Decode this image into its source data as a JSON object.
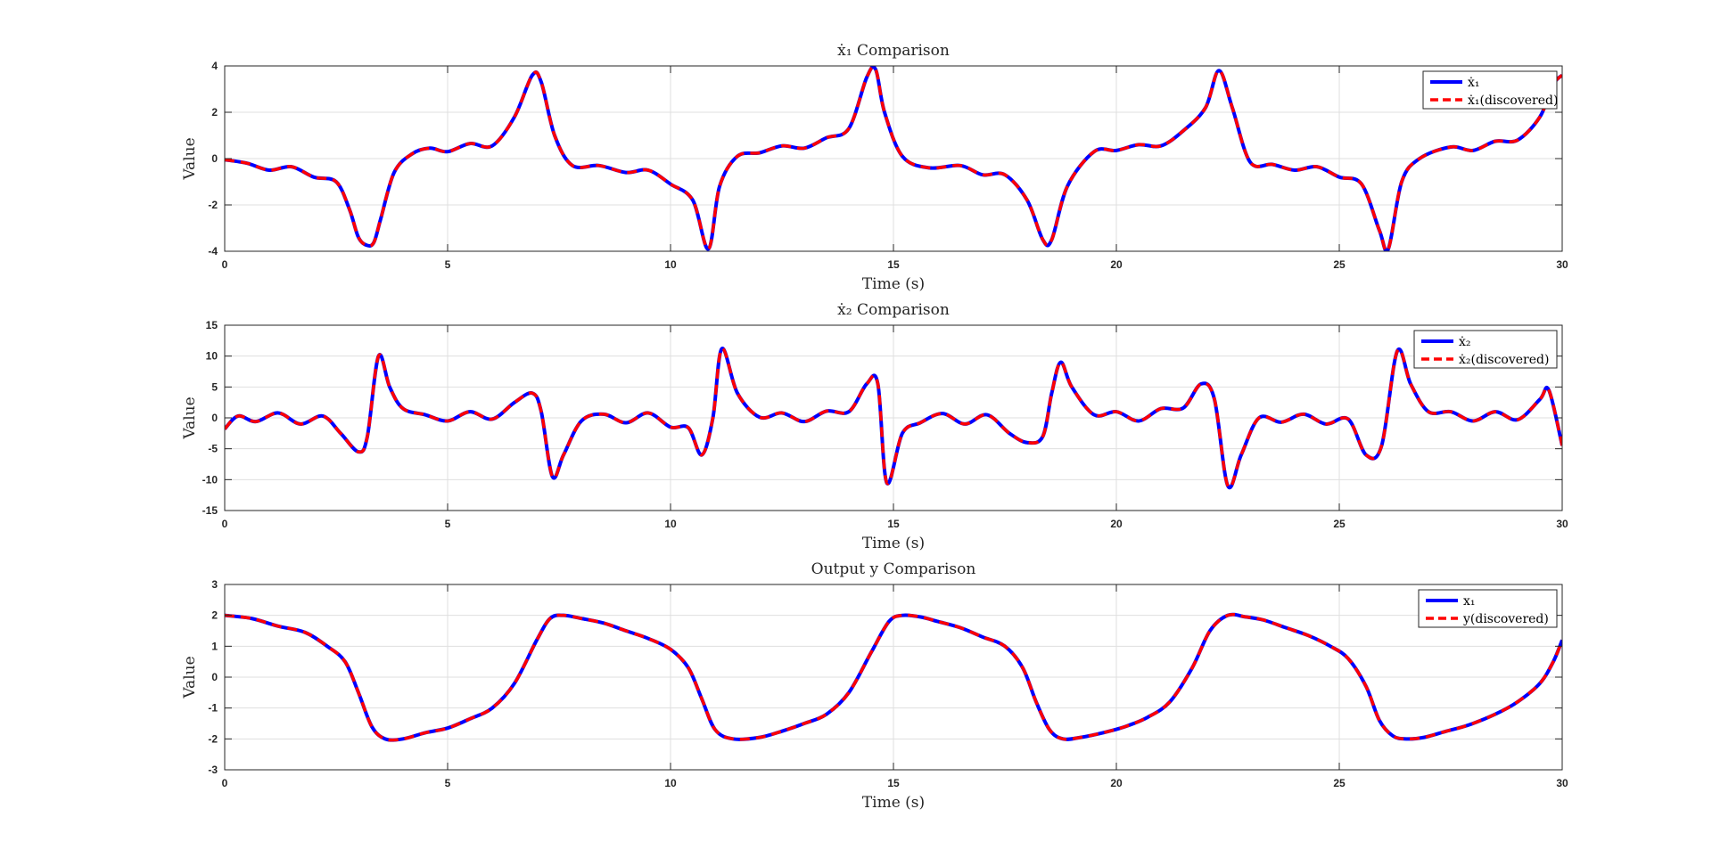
{
  "chart_data": [
    {
      "type": "line",
      "title": "ẋ₁ Comparison",
      "xlabel": "Time (s)",
      "ylabel": "Value",
      "xlim": [
        0,
        30
      ],
      "ylim": [
        -4,
        4
      ],
      "xticks": [
        0,
        5,
        10,
        15,
        20,
        25,
        30
      ],
      "yticks": [
        -4,
        -2,
        0,
        2,
        4
      ],
      "grid": true,
      "legend_position": "top-right",
      "series": [
        {
          "name": "ẋ₁",
          "color": "#0000ff",
          "style": "solid",
          "x": [
            0,
            0.5,
            1.0,
            1.5,
            2.0,
            2.5,
            2.8,
            3.0,
            3.2,
            3.35,
            3.5,
            3.8,
            4.2,
            4.6,
            5.0,
            5.5,
            6.0,
            6.5,
            6.9,
            7.1,
            7.4,
            7.8,
            8.4,
            9.0,
            9.5,
            10.0,
            10.5,
            10.85,
            11.1,
            11.5,
            12.0,
            12.5,
            13.0,
            13.5,
            14.0,
            14.4,
            14.6,
            14.8,
            15.2,
            15.8,
            16.5,
            17.0,
            17.5,
            18.0,
            18.35,
            18.55,
            18.9,
            19.5,
            20.0,
            20.5,
            21.0,
            21.5,
            22.0,
            22.3,
            22.6,
            23.0,
            23.5,
            24.0,
            24.5,
            25.0,
            25.5,
            25.9,
            26.1,
            26.4,
            26.8,
            27.5,
            28.0,
            28.5,
            29.0,
            29.5,
            29.8,
            30.0
          ],
          "y": [
            -0.05,
            -0.2,
            -0.5,
            -0.35,
            -0.8,
            -1.0,
            -2.2,
            -3.4,
            -3.75,
            -3.6,
            -2.6,
            -0.6,
            0.2,
            0.45,
            0.3,
            0.65,
            0.55,
            1.8,
            3.6,
            3.3,
            1.0,
            -0.3,
            -0.3,
            -0.6,
            -0.5,
            -1.1,
            -1.8,
            -3.9,
            -1.2,
            0.1,
            0.25,
            0.55,
            0.45,
            0.9,
            1.3,
            3.5,
            3.85,
            2.0,
            0.1,
            -0.4,
            -0.3,
            -0.7,
            -0.7,
            -1.8,
            -3.5,
            -3.5,
            -1.2,
            0.3,
            0.35,
            0.6,
            0.55,
            1.2,
            2.2,
            3.8,
            2.2,
            -0.15,
            -0.25,
            -0.5,
            -0.35,
            -0.8,
            -1.1,
            -3.1,
            -3.9,
            -1.0,
            0.0,
            0.5,
            0.35,
            0.75,
            0.8,
            1.8,
            3.2,
            3.6
          ]
        },
        {
          "name": "ẋ₁(discovered)",
          "color": "#ff0000",
          "style": "dashed",
          "x": [
            0,
            0.5,
            1.0,
            1.5,
            2.0,
            2.5,
            2.8,
            3.0,
            3.2,
            3.35,
            3.5,
            3.8,
            4.2,
            4.6,
            5.0,
            5.5,
            6.0,
            6.5,
            6.9,
            7.1,
            7.4,
            7.8,
            8.4,
            9.0,
            9.5,
            10.0,
            10.5,
            10.85,
            11.1,
            11.5,
            12.0,
            12.5,
            13.0,
            13.5,
            14.0,
            14.4,
            14.6,
            14.8,
            15.2,
            15.8,
            16.5,
            17.0,
            17.5,
            18.0,
            18.35,
            18.55,
            18.9,
            19.5,
            20.0,
            20.5,
            21.0,
            21.5,
            22.0,
            22.3,
            22.6,
            23.0,
            23.5,
            24.0,
            24.5,
            25.0,
            25.5,
            25.9,
            26.1,
            26.4,
            26.8,
            27.5,
            28.0,
            28.5,
            29.0,
            29.5,
            29.8,
            30.0
          ],
          "y": [
            -0.05,
            -0.2,
            -0.5,
            -0.35,
            -0.8,
            -1.0,
            -2.2,
            -3.4,
            -3.75,
            -3.6,
            -2.6,
            -0.6,
            0.2,
            0.45,
            0.3,
            0.65,
            0.55,
            1.8,
            3.6,
            3.3,
            1.0,
            -0.3,
            -0.3,
            -0.6,
            -0.5,
            -1.1,
            -1.8,
            -3.9,
            -1.2,
            0.1,
            0.25,
            0.55,
            0.45,
            0.9,
            1.3,
            3.5,
            3.85,
            2.0,
            0.1,
            -0.4,
            -0.3,
            -0.7,
            -0.7,
            -1.8,
            -3.5,
            -3.5,
            -1.2,
            0.3,
            0.35,
            0.6,
            0.55,
            1.2,
            2.2,
            3.8,
            2.2,
            -0.15,
            -0.25,
            -0.5,
            -0.35,
            -0.8,
            -1.1,
            -3.1,
            -3.9,
            -1.0,
            0.0,
            0.5,
            0.35,
            0.75,
            0.8,
            1.8,
            3.2,
            3.6
          ]
        }
      ]
    },
    {
      "type": "line",
      "title": "ẋ₂ Comparison",
      "xlabel": "Time (s)",
      "ylabel": "Value",
      "xlim": [
        0,
        30
      ],
      "ylim": [
        -15,
        15
      ],
      "xticks": [
        0,
        5,
        10,
        15,
        20,
        25,
        30
      ],
      "yticks": [
        -15,
        -10,
        -5,
        0,
        5,
        10,
        15
      ],
      "grid": true,
      "legend_position": "top-right",
      "series": [
        {
          "name": "ẋ₂",
          "color": "#0000ff",
          "style": "solid",
          "x": [
            0,
            0.3,
            0.7,
            1.2,
            1.7,
            2.2,
            2.6,
            3.0,
            3.2,
            3.45,
            3.7,
            4.0,
            4.5,
            5.0,
            5.5,
            6.0,
            6.5,
            6.9,
            7.1,
            7.35,
            7.6,
            8.0,
            8.5,
            9.0,
            9.5,
            10.0,
            10.4,
            10.7,
            10.95,
            11.15,
            11.5,
            12.0,
            12.5,
            13.0,
            13.5,
            14.0,
            14.4,
            14.65,
            14.85,
            15.2,
            15.6,
            16.1,
            16.6,
            17.1,
            17.6,
            18.0,
            18.35,
            18.55,
            18.75,
            19.0,
            19.5,
            20.0,
            20.5,
            21.0,
            21.5,
            21.9,
            22.2,
            22.5,
            22.8,
            23.2,
            23.7,
            24.2,
            24.7,
            25.2,
            25.6,
            25.95,
            26.3,
            26.6,
            27.0,
            27.5,
            28.0,
            28.5,
            29.0,
            29.5,
            29.7,
            30.0
          ],
          "y": [
            -1.8,
            0.3,
            -0.6,
            0.8,
            -1.0,
            0.3,
            -2.5,
            -5.5,
            -3.0,
            10.0,
            5.0,
            1.5,
            0.5,
            -0.5,
            1.0,
            -0.2,
            2.5,
            4.0,
            1.0,
            -9.5,
            -6.0,
            -0.5,
            0.6,
            -0.8,
            0.8,
            -1.5,
            -1.6,
            -6.0,
            0.0,
            11.2,
            4.0,
            0.1,
            0.8,
            -0.6,
            1.1,
            1.0,
            5.5,
            5.5,
            -10.5,
            -2.5,
            -0.8,
            0.7,
            -1.0,
            0.5,
            -2.5,
            -4.0,
            -3.0,
            4.0,
            9.0,
            5.0,
            0.5,
            1.0,
            -0.5,
            1.5,
            1.6,
            5.5,
            3.0,
            -11.0,
            -6.0,
            0.0,
            -0.7,
            0.6,
            -1.0,
            -0.2,
            -6.0,
            -4.5,
            10.8,
            5.5,
            1.0,
            1.0,
            -0.5,
            1.0,
            -0.3,
            3.0,
            4.5,
            -4.5
          ]
        },
        {
          "name": "ẋ₂(discovered)",
          "color": "#ff0000",
          "style": "dashed",
          "x": [
            0,
            0.3,
            0.7,
            1.2,
            1.7,
            2.2,
            2.6,
            3.0,
            3.2,
            3.45,
            3.7,
            4.0,
            4.5,
            5.0,
            5.5,
            6.0,
            6.5,
            6.9,
            7.1,
            7.35,
            7.6,
            8.0,
            8.5,
            9.0,
            9.5,
            10.0,
            10.4,
            10.7,
            10.95,
            11.15,
            11.5,
            12.0,
            12.5,
            13.0,
            13.5,
            14.0,
            14.4,
            14.65,
            14.85,
            15.2,
            15.6,
            16.1,
            16.6,
            17.1,
            17.6,
            18.0,
            18.35,
            18.55,
            18.75,
            19.0,
            19.5,
            20.0,
            20.5,
            21.0,
            21.5,
            21.9,
            22.2,
            22.5,
            22.8,
            23.2,
            23.7,
            24.2,
            24.7,
            25.2,
            25.6,
            25.95,
            26.3,
            26.6,
            27.0,
            27.5,
            28.0,
            28.5,
            29.0,
            29.5,
            29.7,
            30.0
          ],
          "y": [
            -1.8,
            0.3,
            -0.6,
            0.8,
            -1.0,
            0.3,
            -2.5,
            -5.5,
            -3.0,
            10.0,
            5.0,
            1.5,
            0.5,
            -0.5,
            1.0,
            -0.2,
            2.5,
            4.0,
            1.0,
            -9.5,
            -6.0,
            -0.5,
            0.6,
            -0.8,
            0.8,
            -1.5,
            -1.6,
            -6.0,
            0.0,
            11.2,
            4.0,
            0.1,
            0.8,
            -0.6,
            1.1,
            1.0,
            5.5,
            5.5,
            -10.5,
            -2.5,
            -0.8,
            0.7,
            -1.0,
            0.5,
            -2.5,
            -4.0,
            -3.0,
            4.0,
            9.0,
            5.0,
            0.5,
            1.0,
            -0.5,
            1.5,
            1.6,
            5.5,
            3.0,
            -11.0,
            -6.0,
            0.0,
            -0.7,
            0.6,
            -1.0,
            -0.2,
            -6.0,
            -4.5,
            10.8,
            5.5,
            1.0,
            1.0,
            -0.5,
            1.0,
            -0.3,
            3.0,
            4.5,
            -4.5
          ]
        }
      ]
    },
    {
      "type": "line",
      "title": "Output y Comparison",
      "xlabel": "Time (s)",
      "ylabel": "Value",
      "xlim": [
        0,
        30
      ],
      "ylim": [
        -3,
        3
      ],
      "xticks": [
        0,
        5,
        10,
        15,
        20,
        25,
        30
      ],
      "yticks": [
        -3,
        -2,
        -1,
        0,
        1,
        2,
        3
      ],
      "grid": true,
      "legend_position": "top-right",
      "series": [
        {
          "name": "x₁",
          "color": "#0000ff",
          "style": "solid",
          "x": [
            0,
            0.6,
            1.2,
            1.8,
            2.3,
            2.7,
            3.0,
            3.3,
            3.6,
            4.0,
            4.5,
            5.0,
            5.5,
            6.0,
            6.5,
            7.0,
            7.3,
            7.6,
            8.0,
            8.5,
            9.0,
            9.5,
            10.0,
            10.4,
            10.7,
            11.0,
            11.4,
            12.0,
            12.5,
            13.0,
            13.5,
            14.0,
            14.5,
            14.9,
            15.2,
            15.6,
            16.0,
            16.5,
            17.0,
            17.5,
            17.9,
            18.2,
            18.5,
            18.8,
            19.2,
            19.7,
            20.2,
            20.7,
            21.2,
            21.7,
            22.1,
            22.5,
            22.9,
            23.3,
            23.8,
            24.3,
            24.8,
            25.2,
            25.6,
            25.9,
            26.2,
            26.5,
            26.9,
            27.4,
            27.9,
            28.5,
            29.0,
            29.5,
            29.8,
            30.0
          ],
          "y": [
            2.0,
            1.9,
            1.65,
            1.45,
            1.0,
            0.5,
            -0.5,
            -1.6,
            -2.0,
            -2.0,
            -1.8,
            -1.65,
            -1.35,
            -1.0,
            -0.2,
            1.2,
            1.9,
            2.0,
            1.9,
            1.75,
            1.5,
            1.25,
            0.9,
            0.3,
            -0.7,
            -1.7,
            -2.0,
            -1.95,
            -1.75,
            -1.5,
            -1.2,
            -0.5,
            0.8,
            1.8,
            2.0,
            1.95,
            1.8,
            1.6,
            1.3,
            1.0,
            0.3,
            -0.8,
            -1.7,
            -2.0,
            -1.95,
            -1.8,
            -1.6,
            -1.3,
            -0.8,
            0.3,
            1.5,
            2.0,
            1.95,
            1.85,
            1.6,
            1.35,
            1.0,
            0.6,
            -0.3,
            -1.4,
            -1.9,
            -2.0,
            -1.95,
            -1.75,
            -1.55,
            -1.2,
            -0.8,
            -0.2,
            0.5,
            1.2
          ]
        },
        {
          "name": "y(discovered)",
          "color": "#ff0000",
          "style": "dashed",
          "x": [
            0,
            0.6,
            1.2,
            1.8,
            2.3,
            2.7,
            3.0,
            3.3,
            3.6,
            4.0,
            4.5,
            5.0,
            5.5,
            6.0,
            6.5,
            7.0,
            7.3,
            7.6,
            8.0,
            8.5,
            9.0,
            9.5,
            10.0,
            10.4,
            10.7,
            11.0,
            11.4,
            12.0,
            12.5,
            13.0,
            13.5,
            14.0,
            14.5,
            14.9,
            15.2,
            15.6,
            16.0,
            16.5,
            17.0,
            17.5,
            17.9,
            18.2,
            18.5,
            18.8,
            19.2,
            19.7,
            20.2,
            20.7,
            21.2,
            21.7,
            22.1,
            22.5,
            22.9,
            23.3,
            23.8,
            24.3,
            24.8,
            25.2,
            25.6,
            25.9,
            26.2,
            26.5,
            26.9,
            27.4,
            27.9,
            28.5,
            29.0,
            29.5,
            29.8,
            30.0
          ],
          "y": [
            2.0,
            1.9,
            1.65,
            1.45,
            1.0,
            0.5,
            -0.5,
            -1.6,
            -2.0,
            -2.0,
            -1.8,
            -1.65,
            -1.35,
            -1.0,
            -0.2,
            1.2,
            1.9,
            2.0,
            1.9,
            1.75,
            1.5,
            1.25,
            0.9,
            0.3,
            -0.7,
            -1.7,
            -2.0,
            -1.95,
            -1.75,
            -1.5,
            -1.2,
            -0.5,
            0.8,
            1.8,
            2.0,
            1.95,
            1.8,
            1.6,
            1.3,
            1.0,
            0.3,
            -0.8,
            -1.7,
            -2.0,
            -1.95,
            -1.8,
            -1.6,
            -1.3,
            -0.8,
            0.3,
            1.5,
            2.0,
            1.95,
            1.85,
            1.6,
            1.35,
            1.0,
            0.6,
            -0.3,
            -1.4,
            -1.9,
            -2.0,
            -1.95,
            -1.75,
            -1.55,
            -1.2,
            -0.8,
            -0.2,
            0.5,
            1.2
          ]
        }
      ]
    }
  ]
}
